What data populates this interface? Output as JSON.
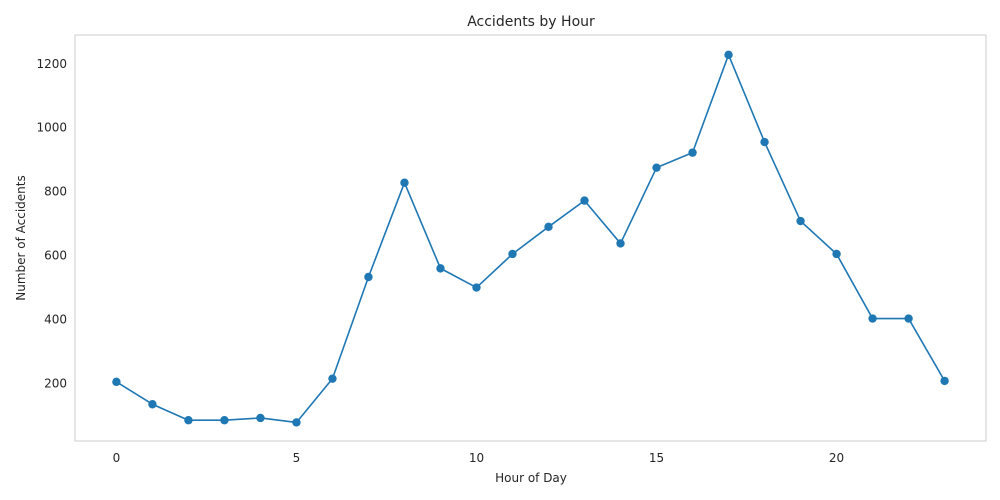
{
  "chart_data": {
    "type": "line",
    "title": "Accidents by Hour",
    "xlabel": "Hour of Day",
    "ylabel": "Number of Accidents",
    "x": [
      0,
      1,
      2,
      3,
      4,
      5,
      6,
      7,
      8,
      9,
      10,
      11,
      12,
      13,
      14,
      15,
      16,
      17,
      18,
      19,
      20,
      21,
      22,
      23
    ],
    "series": [
      {
        "values": [
          205,
          135,
          85,
          85,
          92,
          78,
          215,
          533,
          828,
          560,
          500,
          605,
          690,
          772,
          638,
          875,
          922,
          1228,
          955,
          708,
          605,
          403,
          403,
          208
        ],
        "color": "#1f77b4",
        "marker": "circle"
      }
    ],
    "xlim": [
      -1.15,
      24.15
    ],
    "ylim": [
      20,
      1290
    ],
    "xticks": [
      0,
      5,
      10,
      15,
      20
    ],
    "yticks": [
      200,
      400,
      600,
      800,
      1000,
      1200
    ],
    "grid": false,
    "legend": "none"
  }
}
